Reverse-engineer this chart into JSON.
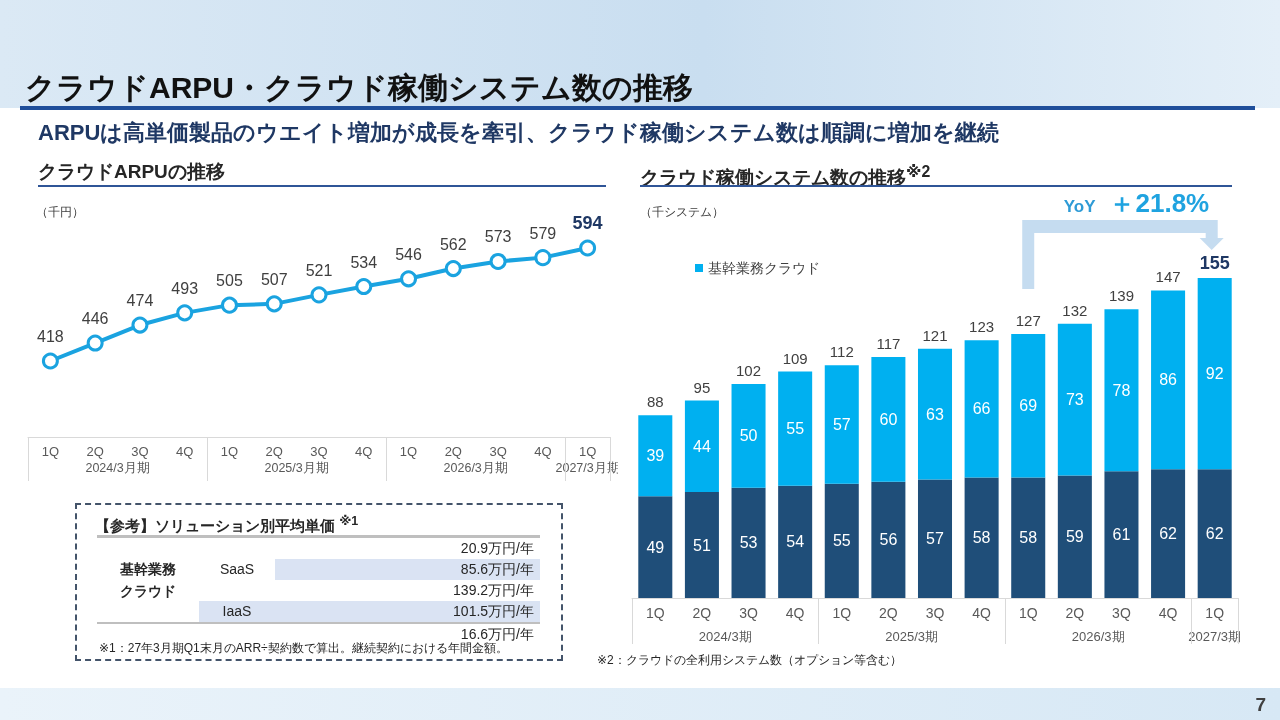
{
  "chart_data": [
    {
      "type": "other",
      "title": "クラウドARPU・クラウド稼働システム数の推移",
      "subtitle": "ARPUは高単価製品のウエイト増加が成長を牽引、クラウド稼働システム数は順調に増加を継続",
      "annotations": [
        "7"
      ]
    },
    {
      "type": "line",
      "title": "クラウドARPUの推移",
      "ylabel": "（千円）",
      "categories": [
        "1Q",
        "2Q",
        "3Q",
        "4Q",
        "1Q",
        "2Q",
        "3Q",
        "4Q",
        "1Q",
        "2Q",
        "3Q",
        "4Q",
        "1Q"
      ],
      "values": [
        418,
        446,
        474,
        493,
        505,
        507,
        521,
        534,
        546,
        562,
        573,
        579,
        594
      ],
      "color": "#1aa3e0",
      "marker": "circle",
      "data_labels": true,
      "annotations": [
        "2024/3月期",
        "2025/3月期",
        "2026/3月期",
        "2027/3月期"
      ]
    },
    {
      "type": "bar",
      "stacked": true,
      "title": "クラウド稼働システム数の推移$^{※2}$",
      "ylabel": "（千システム）",
      "categories": [
        "1Q",
        "2Q",
        "3Q",
        "4Q",
        "1Q",
        "2Q",
        "3Q",
        "4Q",
        "1Q",
        "2Q",
        "3Q",
        "4Q",
        "1Q"
      ],
      "series": [
        {
          "color": "#1f4e79",
          "values": [
            49,
            51,
            53,
            54,
            55,
            56,
            57,
            58,
            58,
            59,
            61,
            62,
            62
          ]
        },
        {
          "name": "基幹業務クラウド",
          "color": "#00b0f0",
          "values": [
            39,
            44,
            50,
            55,
            57,
            60,
            63,
            66,
            69,
            73,
            78,
            86,
            92
          ]
        }
      ],
      "data_labels": true,
      "totals": [
        "88",
        "95",
        "102",
        "109",
        "112",
        "117",
        "121",
        "123",
        "127",
        "132",
        "139",
        "147",
        "155"
      ],
      "legend": "top left",
      "annotations": [
        "YoY ＋21.8%",
        "2024/3期",
        "2025/3期",
        "2026/3期",
        "2027/3期",
        "※2：クラウドの全利用システム数（オプション等含む）"
      ]
    },
    {
      "type": "other",
      "title": "【参考】ソリューション別平均単価 $^{※1}$",
      "annotations": [
        "基幹業務クラウド",
        "SaaS",
        "20.9万円/年",
        "85.6万円/年",
        "139.2万円/年",
        "IaaS",
        "101.5万円/年",
        "16.6万円/年",
        "※1：27年3月期Q1末月のARR÷契約数で算出。継続契約における年間金額。"
      ]
    }
  ]
}
